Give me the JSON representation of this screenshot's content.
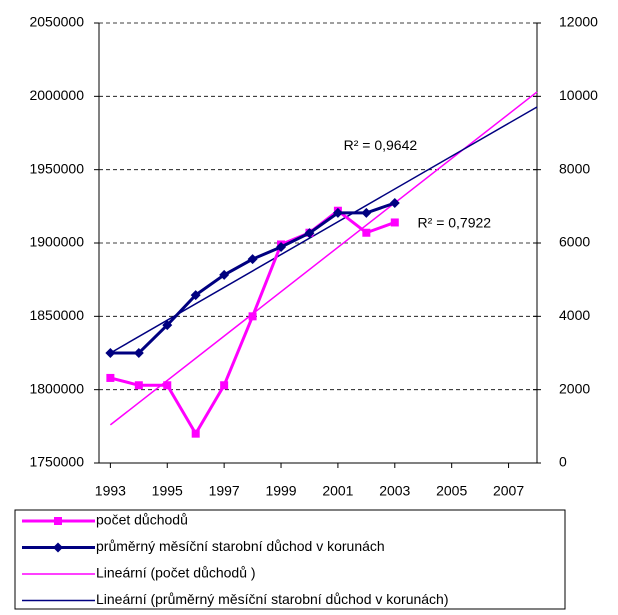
{
  "chart_data": {
    "type": "line",
    "x": [
      1993,
      1994,
      1995,
      1996,
      1997,
      1998,
      1999,
      2000,
      2001,
      2002,
      2003
    ],
    "xlim": [
      1992.6,
      2008
    ],
    "xticks": [
      1993,
      1995,
      1997,
      1999,
      2001,
      2003,
      2005,
      2007
    ],
    "ylim": [
      1750000,
      2050000
    ],
    "yticks": [
      1750000,
      1800000,
      1850000,
      1900000,
      1950000,
      2000000,
      2050000
    ],
    "y2lim": [
      0,
      12000
    ],
    "y2ticks": [
      0,
      2000,
      4000,
      6000,
      8000,
      10000,
      12000
    ],
    "grid": true,
    "legend": "bottom",
    "series": [
      {
        "name": "počet důchodů",
        "color": "#ff00ff",
        "marker": "square",
        "values": [
          1808000,
          1803000,
          1803000,
          1770000,
          1803000,
          1850000,
          1899000,
          1907000,
          1922000,
          1907000,
          1914000
        ]
      },
      {
        "name": "průměrný měsíční starobní důchod v korunách",
        "color": "#000080",
        "marker": "diamond",
        "axis": "y2",
        "values": [
          3000,
          3000,
          3760,
          4580,
          5130,
          5560,
          5890,
          6270,
          6820,
          6820,
          7090
        ]
      }
    ],
    "trendlines": [
      {
        "name": "Lineární (počet důchodů )",
        "color": "#ff00ff",
        "x": [
          1993,
          2008
        ],
        "values": [
          1776000,
          2003000
        ]
      },
      {
        "name": "Lineární (průměrný měsíční starobní důchod v korunách)",
        "color": "#000080",
        "axis": "y2",
        "x": [
          1993,
          2008
        ],
        "values": [
          3000,
          9710
        ]
      }
    ],
    "annotations": [
      {
        "text": "R² = 0,9642",
        "x": 2001.2,
        "y": 1966000
      },
      {
        "text": "R² = 0,7922",
        "x": 2003.8,
        "y": 1913000
      }
    ]
  }
}
